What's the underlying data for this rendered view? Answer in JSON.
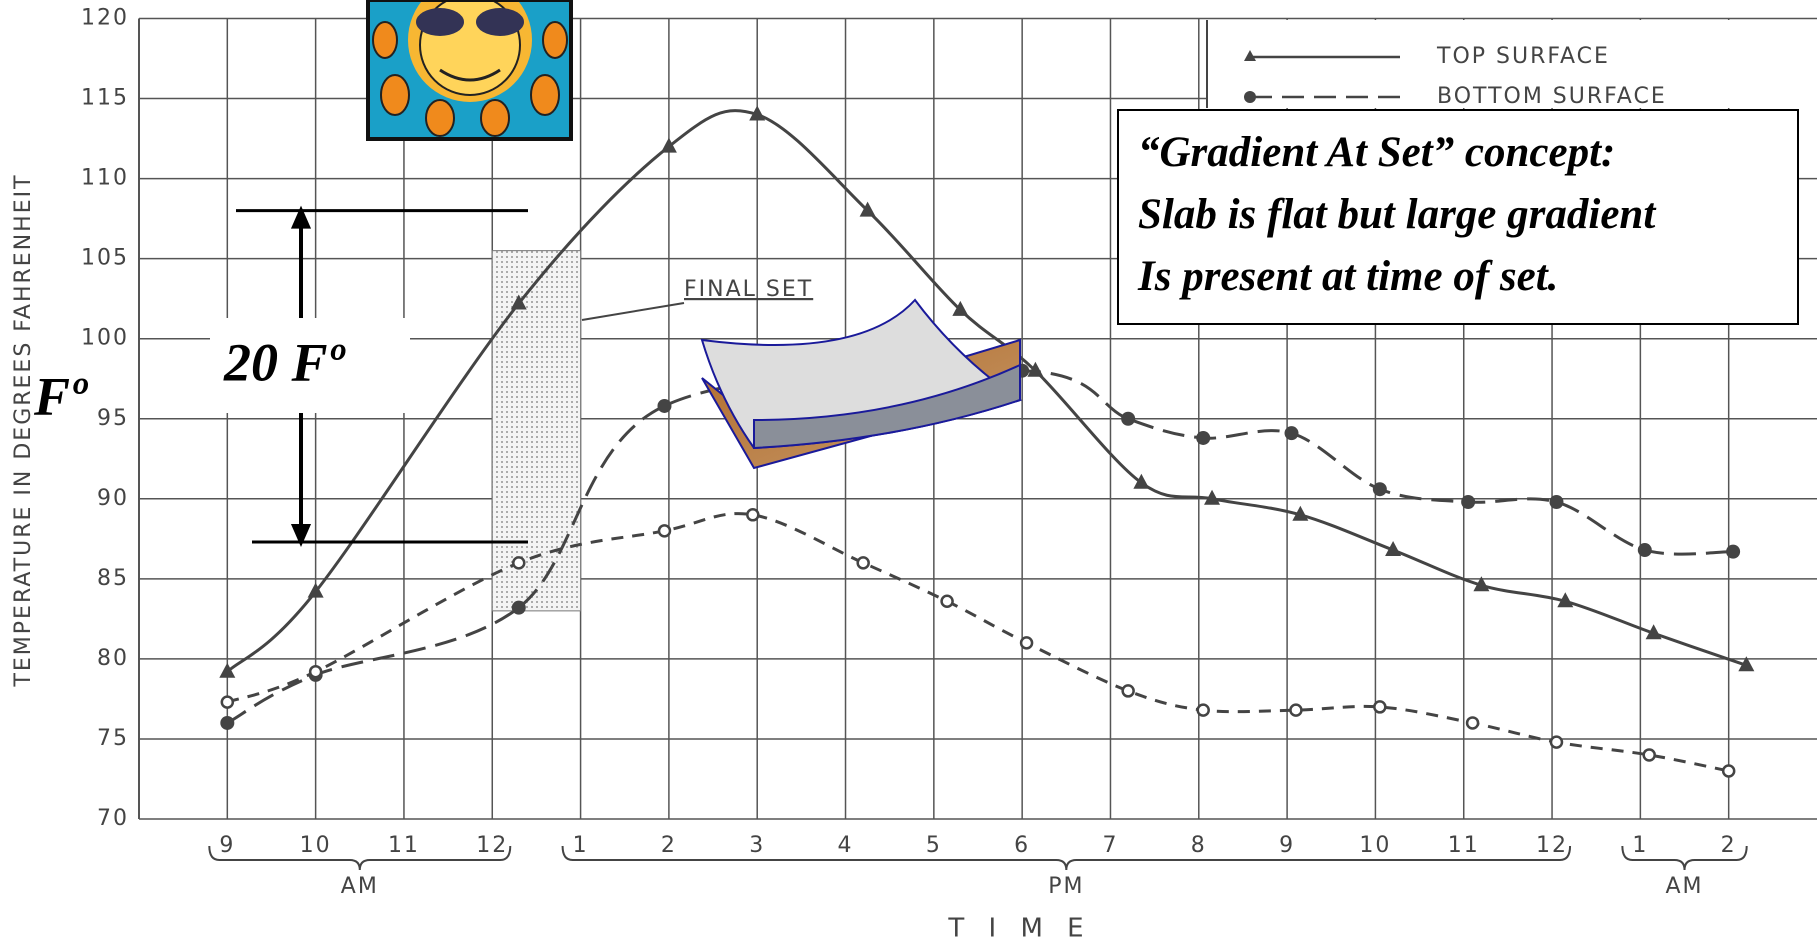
{
  "chart_data": {
    "type": "line",
    "y_label": "TEMPERATURE IN DEGREES FAHRENHEIT",
    "x_label": "T I M E",
    "xlim": [
      -1,
      18
    ],
    "ylim": [
      70,
      120
    ],
    "yticks": [
      70,
      75,
      80,
      85,
      90,
      95,
      100,
      105,
      110,
      115,
      120
    ],
    "xticks": [
      {
        "value": 0,
        "label": "9"
      },
      {
        "value": 1,
        "label": "10"
      },
      {
        "value": 2,
        "label": "11"
      },
      {
        "value": 3,
        "label": "12"
      },
      {
        "value": 4,
        "label": "1"
      },
      {
        "value": 5,
        "label": "2"
      },
      {
        "value": 6,
        "label": "3"
      },
      {
        "value": 7,
        "label": "4"
      },
      {
        "value": 8,
        "label": "5"
      },
      {
        "value": 9,
        "label": "6"
      },
      {
        "value": 10,
        "label": "7"
      },
      {
        "value": 11,
        "label": "8"
      },
      {
        "value": 12,
        "label": "9"
      },
      {
        "value": 13,
        "label": "10"
      },
      {
        "value": 14,
        "label": "11"
      },
      {
        "value": 15,
        "label": "12"
      },
      {
        "value": 16,
        "label": "1"
      },
      {
        "value": 17,
        "label": "2"
      }
    ],
    "groups": [
      {
        "label": "AM",
        "from": 0,
        "to": 3
      },
      {
        "label": "PM",
        "from": 4,
        "to": 15
      },
      {
        "label": "AM",
        "from": 16,
        "to": 17
      }
    ],
    "grid": true,
    "series": [
      {
        "name": "TOP SURFACE",
        "color": "#444444",
        "marker": "triangle",
        "dash": "solid",
        "x": [
          0,
          1,
          3.3,
          5,
          6,
          7.25,
          8.3,
          9.15,
          10.35,
          11.15,
          12.15,
          13.2,
          14.2,
          15.15,
          16.15,
          17.2
        ],
        "values": [
          79.2,
          84.2,
          102.2,
          112,
          114,
          108,
          101.8,
          98,
          91,
          90,
          89,
          86.8,
          84.6,
          83.6,
          81.6,
          79.6
        ]
      },
      {
        "name": "BOTTOM SURFACE",
        "color": "#444444",
        "marker": "dot",
        "dash": "long",
        "x": [
          0,
          1,
          3.3,
          4.95,
          9,
          10.2,
          11.05,
          12.05,
          13.05,
          14.05,
          15.05,
          16.05,
          17.05
        ],
        "values": [
          76,
          79,
          83.2,
          95.8,
          98,
          95,
          93.8,
          94.1,
          90.6,
          89.8,
          89.8,
          86.8,
          86.7
        ]
      },
      {
        "color": "#444444",
        "marker": "ring",
        "dash": "short",
        "x": [
          0,
          1,
          3.3,
          4.95,
          5.95,
          7.2,
          8.15,
          9.05,
          10.2,
          11.05,
          12.1,
          13.05,
          14.1,
          15.05,
          16.1,
          17
        ],
        "values": [
          77.3,
          79.2,
          86,
          88,
          89,
          86,
          83.6,
          81,
          78,
          76.8,
          76.8,
          77,
          76,
          74.8,
          74,
          73
        ]
      }
    ],
    "final_set": {
      "label": "FINAL SET",
      "x_range": [
        3,
        4
      ]
    },
    "gradient": {
      "label": "20 Fº",
      "range": [
        108,
        87.3
      ]
    },
    "unit_label": "Fº",
    "note": [
      "“Gradient At Set” concept:",
      "Slab is flat but large gradient",
      "Is present at time of set."
    ]
  }
}
